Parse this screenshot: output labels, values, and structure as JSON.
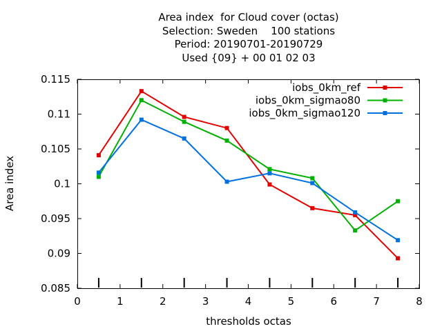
{
  "chart_data": {
    "type": "line",
    "title_lines": [
      "Area index  for Cloud cover (octas)",
      "Selection: Sweden    100 stations",
      "Period: 20190701-20190729",
      "Used {09} + 00 01 02 03"
    ],
    "xlabel": "thresholds octas",
    "ylabel": "Area index",
    "xlim": [
      0,
      8
    ],
    "ylim": [
      0.085,
      0.115
    ],
    "xticks": [
      0,
      1,
      2,
      3,
      4,
      5,
      6,
      7,
      8
    ],
    "xtick_labels": [
      "0",
      "1",
      "2",
      "3",
      "4",
      "5",
      "6",
      "7",
      "8"
    ],
    "yticks": [
      0.085,
      0.09,
      0.095,
      0.1,
      0.105,
      0.11,
      0.115
    ],
    "ytick_labels": [
      "0.085",
      "0.09",
      "0.095",
      "0.1",
      "0.105",
      "0.11",
      "0.115"
    ],
    "x": [
      0.5,
      1.5,
      2.5,
      3.5,
      4.5,
      5.5,
      6.5,
      7.5
    ],
    "series": [
      {
        "name": "iobs_0km_ref",
        "color": "#e00000",
        "values": [
          0.1041,
          0.1133,
          0.1096,
          0.108,
          0.0999,
          0.0965,
          0.0955,
          0.0893
        ]
      },
      {
        "name": "iobs_0km_sigmao80",
        "color": "#00b000",
        "values": [
          0.101,
          0.112,
          0.1089,
          0.1062,
          0.1021,
          0.1008,
          0.0933,
          0.0975
        ]
      },
      {
        "name": "iobs_0km_sigmao120",
        "color": "#0070e0",
        "values": [
          0.1016,
          0.1092,
          0.1065,
          0.1003,
          0.1015,
          0.1001,
          0.0959,
          0.0919
        ]
      }
    ],
    "sample_markers_x": [
      0.5,
      1.5,
      2.5,
      3.5,
      4.5,
      5.5,
      6.5,
      7.5
    ],
    "legend_position": "top-right",
    "grid": false
  }
}
